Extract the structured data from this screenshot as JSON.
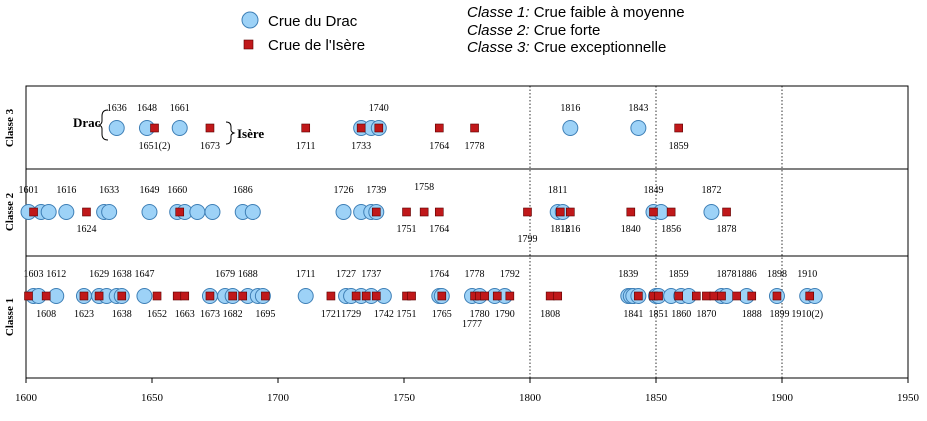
{
  "legend": {
    "drac_label": "Crue du Drac",
    "isere_label": "Crue de l'Isère",
    "drac_color": "#9dd2f7",
    "isere_color": "#c0181a"
  },
  "classes_legend": [
    {
      "key": "Classe 1:",
      "desc": " Crue faible à moyenne"
    },
    {
      "key": "Classe 2:",
      "desc": " Crue forte"
    },
    {
      "key": "Classe 3:",
      "desc": " Crue exceptionnelle"
    }
  ],
  "annotations": {
    "drac": "Drac",
    "isere": "Isère"
  },
  "chart_data": {
    "type": "scatter",
    "title": "",
    "xlim": [
      1600,
      1950
    ],
    "x_ticks": [
      1600,
      1650,
      1700,
      1750,
      1800,
      1850,
      1900,
      1950
    ],
    "vertical_gridlines": [
      1800,
      1850,
      1900
    ],
    "lanes": [
      {
        "name": "Classe 3",
        "drac": [
          1636,
          1648,
          1661,
          1733,
          1737,
          1740,
          1816,
          1843
        ],
        "isere": [
          1651,
          1673,
          1711,
          1733,
          1740,
          1764,
          1778,
          1859
        ],
        "labels_above": [
          "1636",
          "1648",
          "1661",
          "1740",
          "1816",
          "1843"
        ],
        "labels_below": [
          "1651(2)",
          "1673",
          "1711",
          "1733",
          "1764",
          "1778",
          "1859"
        ]
      },
      {
        "name": "Classe 2",
        "drac": [
          1601,
          1606,
          1609,
          1616,
          1631,
          1633,
          1649,
          1660,
          1663,
          1668,
          1674,
          1686,
          1690,
          1726,
          1733,
          1737,
          1739,
          1811,
          1813,
          1849,
          1852,
          1872
        ],
        "isere": [
          1603,
          1624,
          1661,
          1739,
          1751,
          1758,
          1764,
          1799,
          1812,
          1816,
          1840,
          1849,
          1856,
          1878
        ],
        "labels_above": [
          "1601",
          "1616",
          "1633",
          "1649",
          "1660",
          "1686",
          "1726",
          "1739",
          "1758",
          "1811",
          "1849",
          "1872"
        ],
        "labels_below": [
          "1624",
          "1751",
          "1764",
          "1799",
          "1812",
          "1816",
          "1840",
          "1856",
          "1878"
        ]
      },
      {
        "name": "Classe 1",
        "drac": [
          1603,
          1605,
          1612,
          1623,
          1629,
          1632,
          1636,
          1638,
          1647,
          1673,
          1679,
          1682,
          1688,
          1692,
          1694,
          1711,
          1727,
          1729,
          1733,
          1737,
          1742,
          1764,
          1765,
          1777,
          1780,
          1786,
          1790,
          1839,
          1840,
          1841,
          1843,
          1850,
          1851,
          1856,
          1860,
          1863,
          1876,
          1878,
          1886,
          1898,
          1910,
          1913
        ],
        "isere": [
          1601,
          1608,
          1623,
          1629,
          1638,
          1652,
          1660,
          1663,
          1673,
          1682,
          1686,
          1695,
          1721,
          1731,
          1735,
          1739,
          1751,
          1753,
          1765,
          1778,
          1780,
          1782,
          1787,
          1792,
          1808,
          1811,
          1843,
          1849,
          1851,
          1859,
          1866,
          1870,
          1873,
          1876,
          1882,
          1888,
          1898,
          1911
        ],
        "labels_above": [
          "1603",
          "1612",
          "1629",
          "1638",
          "1647",
          "1679",
          "1688",
          "1711",
          "1727",
          "1737",
          "1764",
          "1778",
          "1792",
          "1839",
          "1859",
          "1878",
          "1886",
          "1898",
          "1910"
        ],
        "labels_below": [
          "1608",
          "1623",
          "1638",
          "1652",
          "1663",
          "1673",
          "1682",
          "1695",
          "1721",
          "1729",
          "1742",
          "1751",
          "1765",
          "1777",
          "1780",
          "1790",
          "1808",
          "1841",
          "1851",
          "1860",
          "1870",
          "1888",
          "1899",
          "1910(2)"
        ]
      }
    ]
  }
}
